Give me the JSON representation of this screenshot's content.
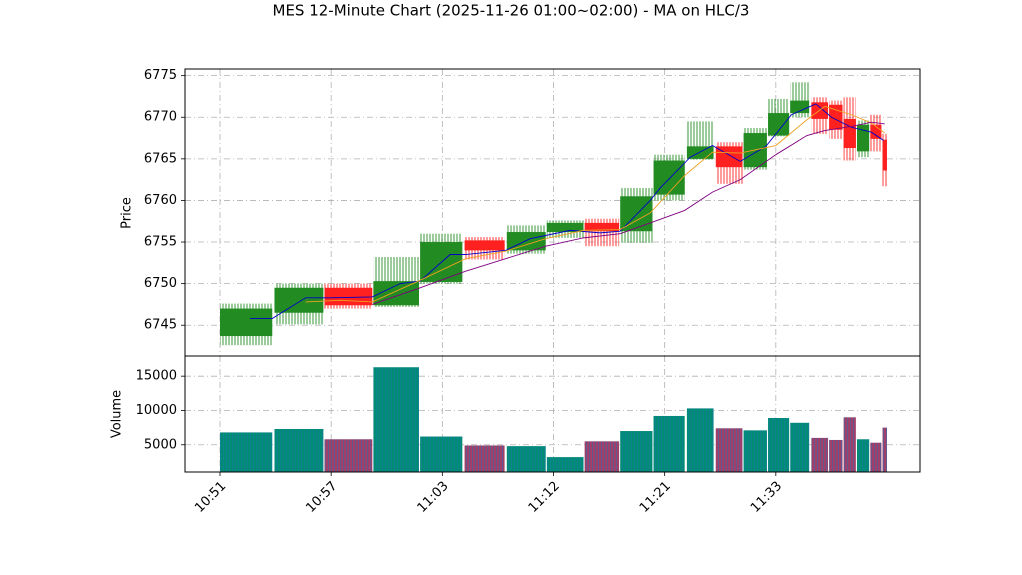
{
  "chart_data": [
    {
      "type": "candlestick",
      "title": "MES 12-Minute Chart (2025-11-26 01:00~02:00) - MA on HLC/3",
      "y_label": "Price",
      "up_color": "#228b22",
      "down_color": "#ff2020",
      "x0": [
        0,
        4.9,
        9.4,
        13.8,
        18,
        22,
        25.8,
        29.4,
        32.8,
        36,
        39,
        42,
        44.6,
        47.1,
        49.3,
        51.3,
        53.2,
        54.8,
        56.1,
        57.3,
        58.5,
        59.6
      ],
      "x1": [
        4.7,
        9.3,
        13.7,
        17.9,
        21.8,
        25.6,
        29.3,
        32.7,
        35.9,
        38.9,
        41.8,
        44.4,
        47,
        49.2,
        51.2,
        53,
        54.7,
        56,
        57.2,
        58.4,
        59.5,
        60
      ],
      "open": [
        6743.7,
        6746.5,
        6749.5,
        6747.4,
        6750.2,
        6755.2,
        6754,
        6756.2,
        6757.3,
        6756.3,
        6760.7,
        6765,
        6766.5,
        6764,
        6767.8,
        6770.5,
        6771.8,
        6771.5,
        6769.8,
        6765.9,
        6769.1,
        6767.3
      ],
      "high": [
        6747.6,
        6750,
        6750,
        6753.2,
        6756,
        6755.6,
        6757,
        6757.6,
        6757.8,
        6761.5,
        6765.5,
        6769.5,
        6767,
        6768.7,
        6772.2,
        6774.2,
        6772.4,
        6772,
        6772.4,
        6769.6,
        6770.3,
        6768
      ],
      "low": [
        6742.6,
        6745.1,
        6747,
        6747.2,
        6750,
        6752.9,
        6753.6,
        6755.5,
        6754.5,
        6754.9,
        6760,
        6764.9,
        6762,
        6763.7,
        6767.7,
        6770,
        6768,
        6767.4,
        6764.8,
        6765.2,
        6765.9,
        6761.7
      ],
      "close": [
        6747,
        6749.5,
        6747.4,
        6750.3,
        6755,
        6754,
        6756.2,
        6757.3,
        6756.3,
        6760.5,
        6764.8,
        6766.5,
        6764,
        6768.1,
        6770.5,
        6772,
        6769.8,
        6768.5,
        6766.3,
        6769.1,
        6767.4,
        6763.6
      ],
      "lines": [
        {
          "color": "#0000cc",
          "x": [
            2.7,
            4.7,
            7.7,
            9.9,
            13.7,
            16.2,
            18,
            20.7,
            22.1,
            25.7,
            27.9,
            31.5,
            34.2,
            36,
            38.7,
            39.6,
            42.3,
            44.3,
            46.8,
            49.1,
            51.4,
            53.6,
            55,
            56.8,
            58.6,
            59.7
          ],
          "values": [
            6745.8,
            6745.8,
            6748.3,
            6748.3,
            6748.4,
            6750,
            6750.3,
            6753.5,
            6753.5,
            6754,
            6755.4,
            6756.4,
            6756.1,
            6756.3,
            6760,
            6761.5,
            6765.2,
            6766.6,
            6764.7,
            6766.5,
            6770.3,
            6771.6,
            6770,
            6768.8,
            6768.2,
            6767.2
          ]
        },
        {
          "color": "#f0a020",
          "x": [
            7.7,
            10.8,
            13.7,
            18,
            22.1,
            25.7,
            29.3,
            32.7,
            36,
            38.7,
            41.8,
            44.3,
            46.8,
            50,
            52.8,
            54.4,
            56.8,
            58.6,
            59.8
          ],
          "values": [
            6747.8,
            6748,
            6747.8,
            6750.4,
            6753,
            6753.9,
            6755.4,
            6756.4,
            6756.5,
            6758.5,
            6763,
            6765.8,
            6765.7,
            6766.6,
            6769.7,
            6771.3,
            6770.3,
            6769.3,
            6768.1
          ]
        },
        {
          "color": "#800080",
          "x": [
            13.7,
            18,
            22.1,
            25.7,
            29.3,
            32.7,
            36,
            38.7,
            41.8,
            44.3,
            46.8,
            50,
            52.8,
            54.4,
            56.8,
            58.6,
            59.8
          ],
          "values": [
            6747.5,
            6749.5,
            6751.5,
            6753,
            6754.5,
            6755.5,
            6756,
            6757.3,
            6758.8,
            6761,
            6762.5,
            6765.5,
            6767.8,
            6768.4,
            6768.9,
            6769.4,
            6769.2
          ]
        }
      ],
      "xlim": [
        -3.15,
        62.97
      ],
      "ylim": [
        6741.3,
        6775.8
      ],
      "yticks": [
        6745,
        6750,
        6755,
        6760,
        6765,
        6770,
        6775
      ],
      "grid": true
    },
    {
      "type": "bar",
      "y_label": "Volume",
      "up_color": "#008b74",
      "down_color": "#a0406a",
      "values": [
        6800,
        7300,
        5800,
        16300,
        6200,
        4900,
        4800,
        3200,
        5500,
        7000,
        9200,
        10300,
        7400,
        7100,
        8900,
        8200,
        6000,
        5700,
        9000,
        5800,
        5300,
        7500
      ],
      "xlim": [
        -3.15,
        62.97
      ],
      "ylim": [
        1030,
        17940
      ],
      "yticks": [
        5000,
        10000,
        15000
      ],
      "xticks": [
        {
          "value": 0,
          "label": "10:51"
        },
        {
          "value": 10,
          "label": "10:57"
        },
        {
          "value": 20,
          "label": "11:03"
        },
        {
          "value": 30,
          "label": "11:12"
        },
        {
          "value": 40,
          "label": "11:21"
        },
        {
          "value": 50,
          "label": "11:33"
        }
      ],
      "grid": true
    }
  ]
}
